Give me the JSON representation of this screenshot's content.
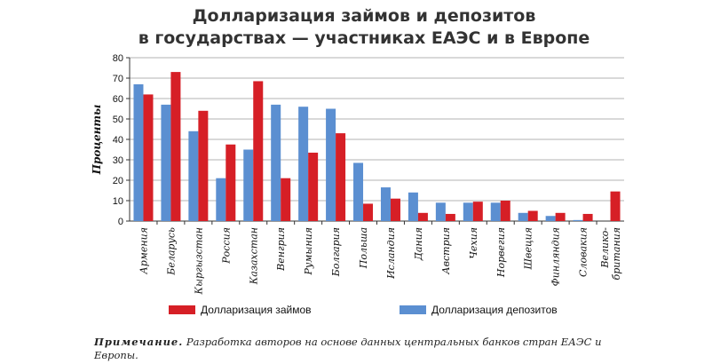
{
  "title": {
    "line1": "Долларизация займов и депозитов",
    "line2": "в государствах — участниках ЕАЭС и в Европе"
  },
  "legend": {
    "loans": "Долларизация займов",
    "deposits": "Долларизация депозитов"
  },
  "note": {
    "label": "Примечание.",
    "text": " Разработка авторов на основе данных центральных банков стран ЕАЭС и Европы."
  },
  "colors": {
    "loans": "#d61f26",
    "deposits": "#5b8fd1",
    "grid": "#9a9a9a",
    "axis": "#333333"
  },
  "chart_data": {
    "type": "bar",
    "title": "Долларизация займов и депозитов в государствах — участниках ЕАЭС и в Европе",
    "xlabel": "",
    "ylabel": "Проценты",
    "ylim": [
      0,
      80
    ],
    "yticks": [
      "0",
      "10",
      "20",
      "30",
      "40",
      "50",
      "60",
      "70",
      "80"
    ],
    "grid": true,
    "categories": [
      [
        "Армения"
      ],
      [
        "Беларусь"
      ],
      [
        "Кыргызстан"
      ],
      [
        "Россия"
      ],
      [
        "Казахстан"
      ],
      [
        "Венгрия"
      ],
      [
        "Румыния"
      ],
      [
        "Болгария"
      ],
      [
        "Польша"
      ],
      [
        "Исландия"
      ],
      [
        "Дания"
      ],
      [
        "Австрия"
      ],
      [
        "Чехия"
      ],
      [
        "Норвегия"
      ],
      [
        "Швеция"
      ],
      [
        "Финляндия"
      ],
      [
        "Словакия"
      ],
      [
        "Велико-",
        "британия"
      ]
    ],
    "series": [
      {
        "name": "Долларизация депозитов",
        "key": "deposits",
        "values": [
          67,
          57,
          44,
          21,
          35,
          57,
          56,
          55,
          28.5,
          16.5,
          14,
          9,
          9,
          9,
          4,
          2.5,
          0.5,
          0
        ]
      },
      {
        "name": "Долларизация займов",
        "key": "loans",
        "values": [
          62,
          73,
          54,
          37.5,
          68.5,
          21,
          33.5,
          43,
          8.5,
          11,
          4,
          3.5,
          9.5,
          10,
          5,
          4,
          3.5,
          14.5
        ]
      }
    ]
  }
}
